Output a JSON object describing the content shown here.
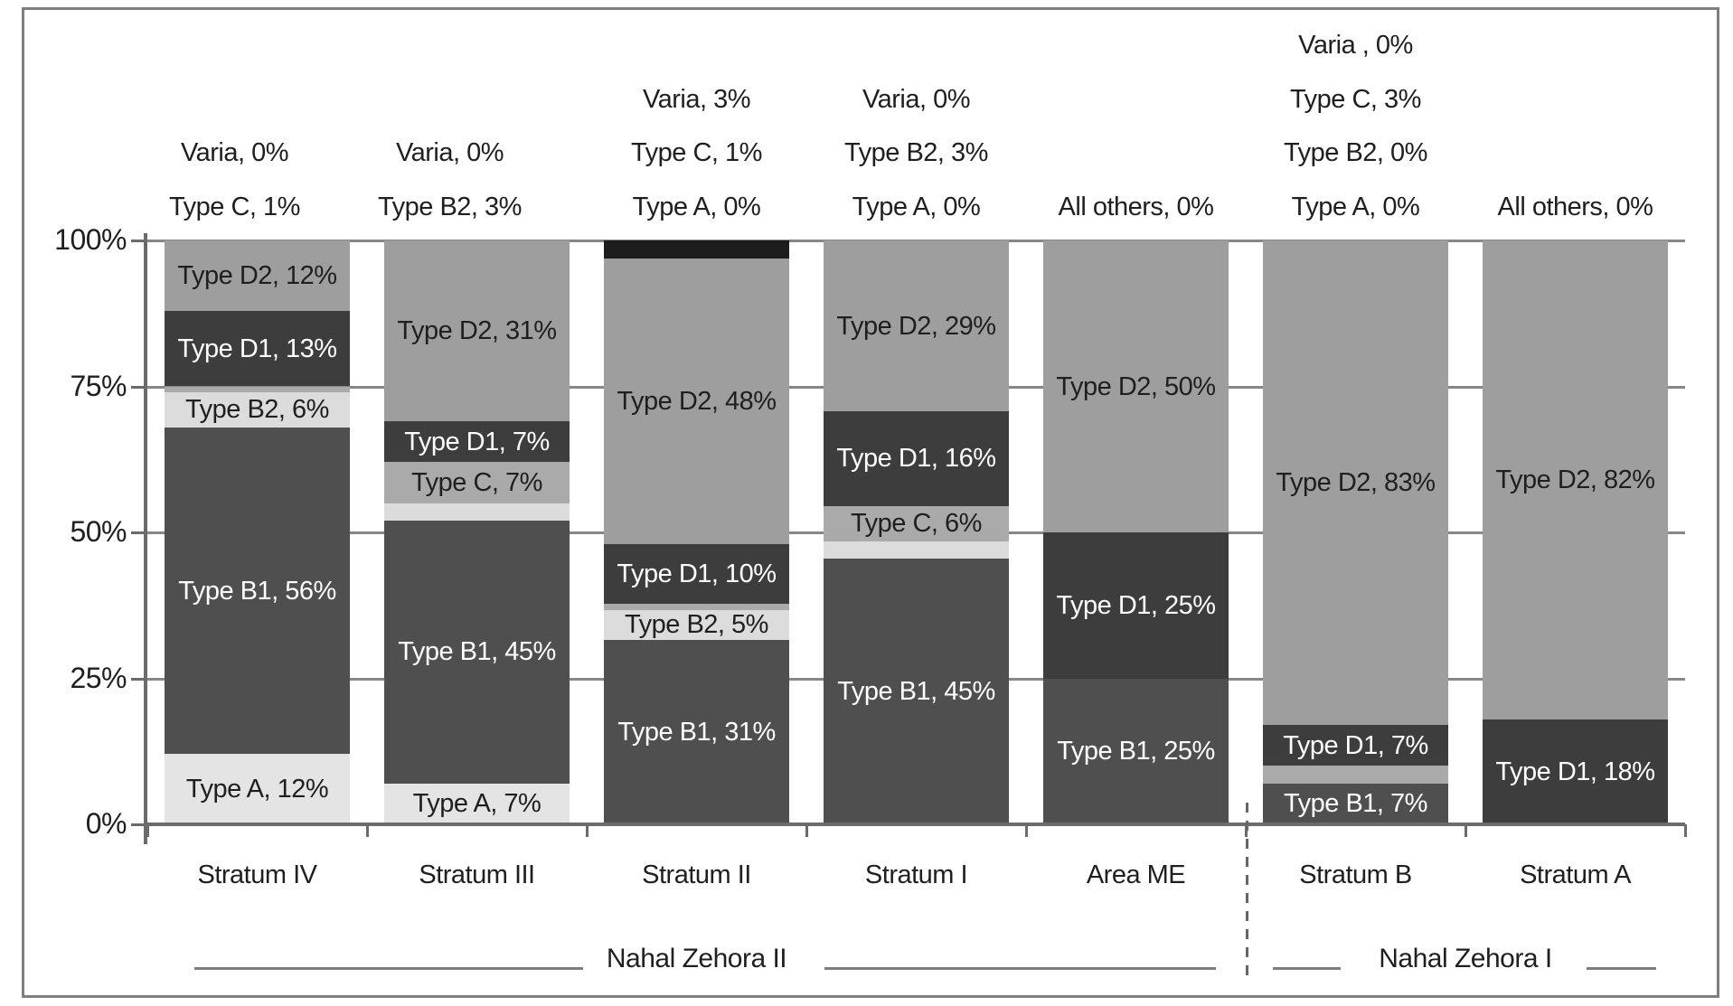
{
  "chart_data": {
    "type": "bar",
    "stacked": true,
    "percent_stacked": true,
    "categories": [
      "Stratum IV",
      "Stratum III",
      "Stratum II",
      "Stratum I",
      "Area ME",
      "Stratum B",
      "Stratum A"
    ],
    "stack_order_bottom_to_top": [
      "Type A",
      "Type B1",
      "Type B2",
      "Type C",
      "Type D1",
      "Type D2",
      "Varia"
    ],
    "series": [
      {
        "name": "Type A",
        "values": [
          12,
          7,
          0,
          0,
          0,
          0,
          0
        ]
      },
      {
        "name": "Type B1",
        "values": [
          56,
          45,
          31,
          45,
          25,
          7,
          0
        ]
      },
      {
        "name": "Type B2",
        "values": [
          6,
          3,
          5,
          3,
          0,
          0,
          0
        ]
      },
      {
        "name": "Type C",
        "values": [
          1,
          7,
          1,
          6,
          0,
          3,
          0
        ]
      },
      {
        "name": "Type D1",
        "values": [
          13,
          7,
          10,
          16,
          25,
          7,
          18
        ]
      },
      {
        "name": "Type D2",
        "values": [
          12,
          31,
          48,
          29,
          50,
          83,
          82
        ]
      },
      {
        "name": "Varia",
        "values": [
          0,
          0,
          3,
          0,
          0,
          0,
          0
        ]
      }
    ],
    "y_axis": {
      "tick_labels": [
        "100%",
        "75%",
        "50%",
        "25%",
        "0%"
      ],
      "range": [
        0,
        100
      ],
      "gridlines": true
    },
    "in_bar_label_format": "{name}, {value}%",
    "outside_labels": [
      {
        "category": "Stratum IV",
        "series": "Varia",
        "text": "Varia, 0%",
        "row": 3
      },
      {
        "category": "Stratum IV",
        "series": "Type C",
        "text": "Type C, 1%",
        "row": 4
      },
      {
        "category": "Stratum III",
        "series": "Varia",
        "text": "Varia, 0%",
        "row": 3
      },
      {
        "category": "Stratum III",
        "series": "Type B2",
        "text": "Type B2, 3%",
        "row": 4
      },
      {
        "category": "Stratum II",
        "series": "Varia",
        "text": "Varia, 3%",
        "row": 2
      },
      {
        "category": "Stratum II",
        "series": "Type C",
        "text": "Type C, 1%",
        "row": 3
      },
      {
        "category": "Stratum II",
        "series": "Type A",
        "text": "Type A, 0%",
        "row": 4
      },
      {
        "category": "Stratum I",
        "series": "Varia",
        "text": "Varia, 0%",
        "row": 2
      },
      {
        "category": "Stratum I",
        "series": "Type B2",
        "text": "Type B2, 3%",
        "row": 3
      },
      {
        "category": "Stratum I",
        "series": "Type A",
        "text": "Type A, 0%",
        "row": 4
      },
      {
        "category": "Area ME",
        "series": "All others",
        "text": "All others, 0%",
        "row": 4
      },
      {
        "category": "Stratum B",
        "series": "Varia",
        "text": "Varia , 0%",
        "row": 1
      },
      {
        "category": "Stratum B",
        "series": "Type C",
        "text": "Type C, 3%",
        "row": 2
      },
      {
        "category": "Stratum B",
        "series": "Type B2",
        "text": "Type B2, 0%",
        "row": 3
      },
      {
        "category": "Stratum B",
        "series": "Type A",
        "text": "Type A, 0%",
        "row": 4
      },
      {
        "category": "Stratum A",
        "series": "All others",
        "text": "All others, 0%",
        "row": 4
      }
    ],
    "groups": [
      {
        "label": "Nahal Zehora II",
        "categories": [
          "Stratum IV",
          "Stratum III",
          "Stratum II",
          "Stratum I",
          "Area ME"
        ]
      },
      {
        "label": "Nahal Zehora I",
        "categories": [
          "Stratum B",
          "Stratum A"
        ]
      }
    ],
    "colors": {
      "Type A": "#e4e4e4",
      "Type B1": "#4f4f4f",
      "Type B2": "#dcdcdc",
      "Type C": "#aaaaaa",
      "Type D1": "#3d3d3d",
      "Type D2": "#9e9e9e",
      "Varia": "#1d1d1d"
    },
    "dark_series": [
      "Type B1",
      "Type D1",
      "Varia"
    ],
    "label_color_on_dark": "#ffffff",
    "label_color_on_light": "#1f1f1f"
  }
}
